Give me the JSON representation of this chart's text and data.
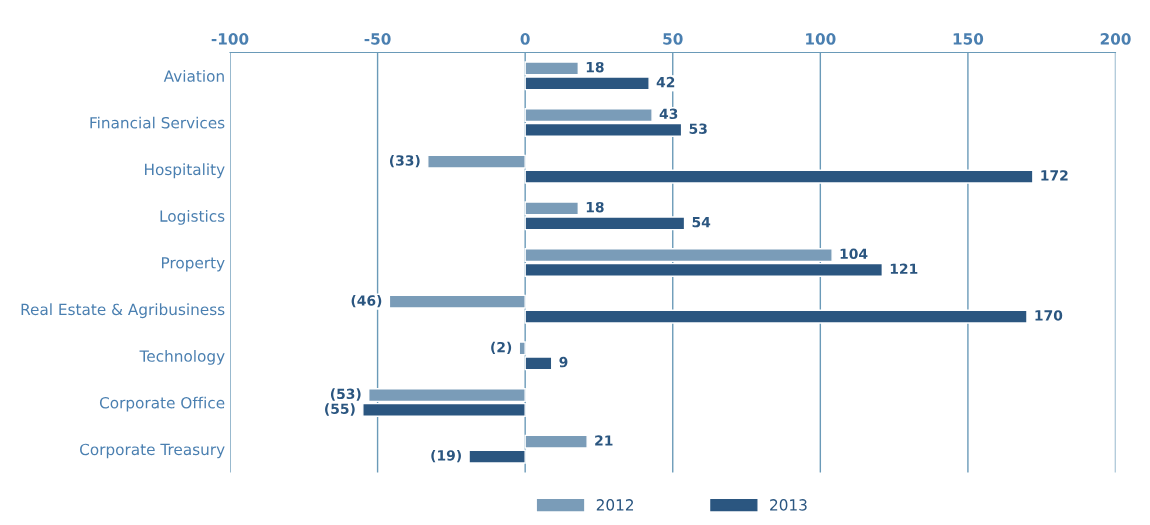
{
  "chart_data": {
    "type": "bar",
    "orientation": "horizontal",
    "categories": [
      "Aviation",
      "Financial Services",
      "Hospitality",
      "Logistics",
      "Property",
      "Real Estate & Agribusiness",
      "Technology",
      "Corporate Office",
      "Corporate Treasury"
    ],
    "series": [
      {
        "name": "2012",
        "color": "#7a9cb8",
        "values": [
          18,
          43,
          -33,
          18,
          104,
          -46,
          -2,
          -53,
          21
        ],
        "value_labels": [
          "18",
          "43",
          "(33)",
          "18",
          "104",
          "(46)",
          "(2)",
          "(53)",
          "21"
        ]
      },
      {
        "name": "2013",
        "color": "#2b5680",
        "values": [
          42,
          53,
          172,
          54,
          121,
          170,
          9,
          -55,
          -19
        ],
        "value_labels": [
          "42",
          "53",
          "172",
          "54",
          "121",
          "170",
          "9",
          "(55)",
          "(19)"
        ]
      }
    ],
    "xlim": [
      -100,
      200
    ],
    "xticks": [
      -100,
      -50,
      0,
      50,
      100,
      150,
      200
    ],
    "grid": "x",
    "legend": "bottom"
  }
}
